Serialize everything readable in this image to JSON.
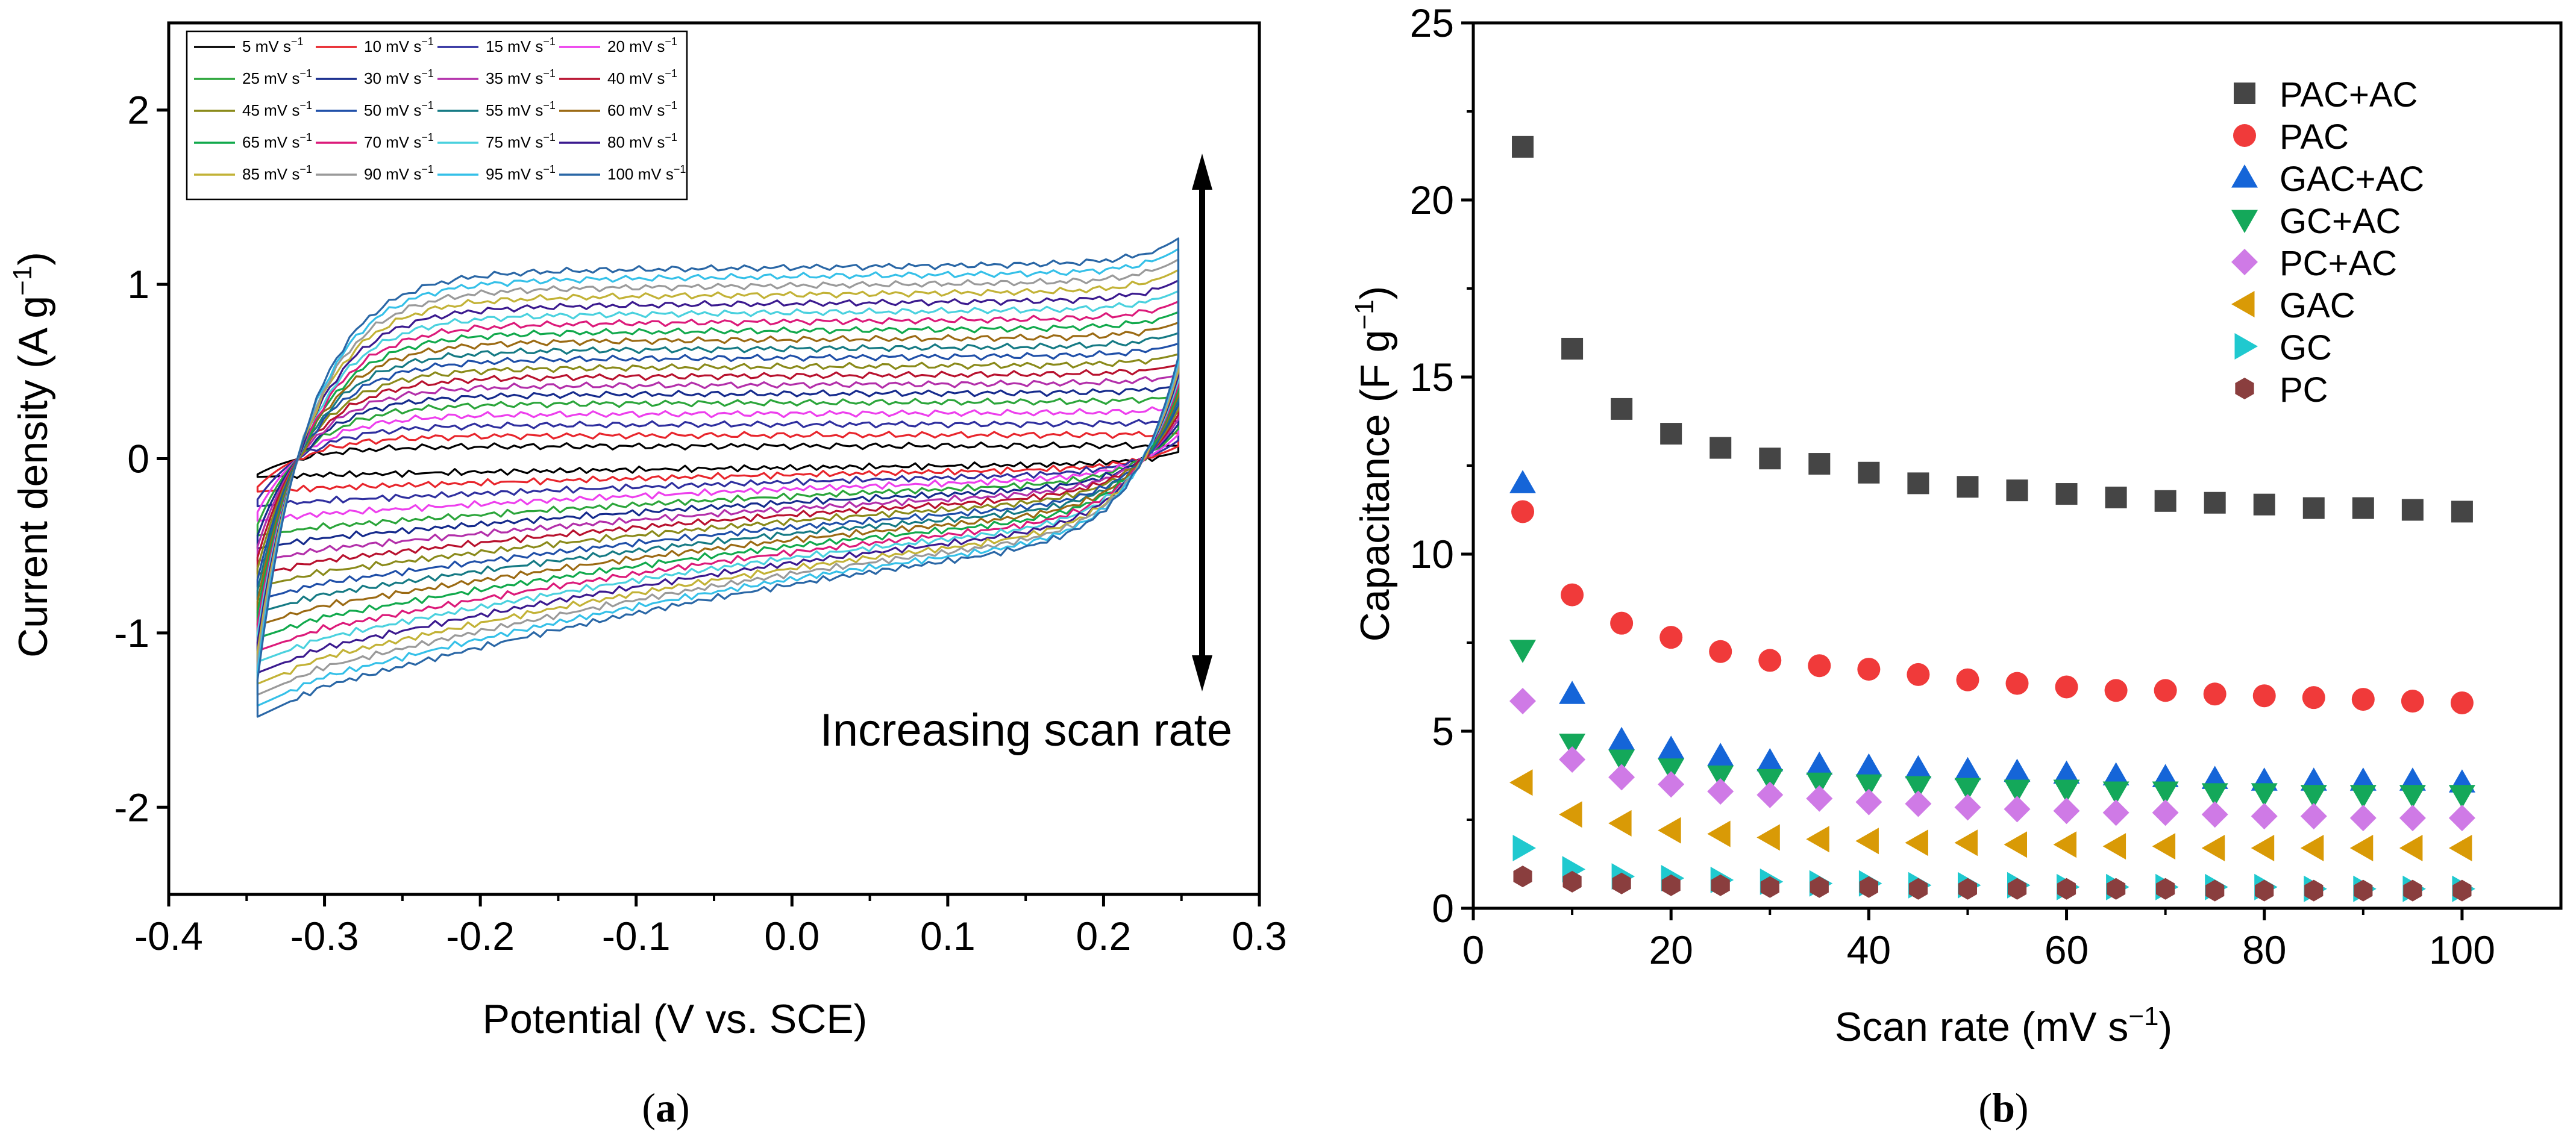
{
  "chart_data": [
    {
      "panel": "a",
      "type": "line",
      "title": "",
      "caption_open": "(",
      "caption_letter": "a",
      "caption_close": ")",
      "xlabel": "Potential (V vs. SCE)",
      "ylabel_main": "Current density (A g",
      "ylabel_sup": "−1",
      "ylabel_close": ")",
      "xlim": [
        -0.4,
        0.3
      ],
      "ylim": [
        -2.5,
        2.5
      ],
      "xticks": [
        -0.4,
        -0.3,
        -0.2,
        -0.1,
        0.0,
        0.1,
        0.2,
        0.3
      ],
      "xtick_labels": [
        "-0.4",
        "-0.3",
        "-0.2",
        "-0.1",
        "0.0",
        "0.1",
        "0.2",
        "0.3"
      ],
      "yticks": [
        -2,
        -1,
        0,
        1,
        2
      ],
      "ytick_labels": [
        "-2",
        "-1",
        "0",
        "1",
        "2"
      ],
      "annotation": "Increasing scan rate",
      "legend_position": "top-left",
      "legend_unit": " mV s",
      "legend_unit_sup": "−1",
      "series": [
        {
          "name": "5",
          "color": "#000000",
          "upper": 0.07,
          "lower": -0.1
        },
        {
          "name": "10",
          "color": "#e8252c",
          "upper": 0.13,
          "lower": -0.18
        },
        {
          "name": "15",
          "color": "#2f2f9f",
          "upper": 0.19,
          "lower": -0.26
        },
        {
          "name": "20",
          "color": "#ed3fed",
          "upper": 0.25,
          "lower": -0.34
        },
        {
          "name": "25",
          "color": "#2ba53a",
          "upper": 0.31,
          "lower": -0.42
        },
        {
          "name": "30",
          "color": "#152a8c",
          "upper": 0.36,
          "lower": -0.49
        },
        {
          "name": "35",
          "color": "#b32faa",
          "upper": 0.41,
          "lower": -0.56
        },
        {
          "name": "40",
          "color": "#b8112e",
          "upper": 0.46,
          "lower": -0.63
        },
        {
          "name": "45",
          "color": "#8a8a1a",
          "upper": 0.51,
          "lower": -0.7
        },
        {
          "name": "50",
          "color": "#1f4fa8",
          "upper": 0.56,
          "lower": -0.77
        },
        {
          "name": "55",
          "color": "#157a84",
          "upper": 0.61,
          "lower": -0.84
        },
        {
          "name": "60",
          "color": "#9b6a13",
          "upper": 0.66,
          "lower": -0.91
        },
        {
          "name": "65",
          "color": "#11a94c",
          "upper": 0.71,
          "lower": -0.98
        },
        {
          "name": "70",
          "color": "#dc1a7a",
          "upper": 0.76,
          "lower": -1.05
        },
        {
          "name": "75",
          "color": "#4ad1de",
          "upper": 0.81,
          "lower": -1.11
        },
        {
          "name": "80",
          "color": "#3b1a8f",
          "upper": 0.86,
          "lower": -1.17
        },
        {
          "name": "85",
          "color": "#c2b236",
          "upper": 0.91,
          "lower": -1.23
        },
        {
          "name": "90",
          "color": "#9a9a9a",
          "upper": 0.96,
          "lower": -1.29
        },
        {
          "name": "95",
          "color": "#35c0e8",
          "upper": 1.01,
          "lower": -1.35
        },
        {
          "name": "100",
          "color": "#2a67a6",
          "upper": 1.06,
          "lower": -1.41
        }
      ]
    },
    {
      "panel": "b",
      "type": "scatter",
      "title": "",
      "caption_open": "(",
      "caption_letter": "b",
      "caption_close": ")",
      "xlabel_main": "Scan rate (mV s",
      "xlabel_sup": "−1",
      "xlabel_close": ")",
      "ylabel_main": "Capacitance (F g",
      "ylabel_sup": "−1",
      "ylabel_close": ")",
      "xlim": [
        0,
        110
      ],
      "ylim": [
        0,
        25
      ],
      "xticks": [
        0,
        20,
        40,
        60,
        80,
        100
      ],
      "xtick_labels": [
        "0",
        "20",
        "40",
        "60",
        "80",
        "100"
      ],
      "yticks": [
        0,
        5,
        10,
        15,
        20,
        25
      ],
      "ytick_labels": [
        "0",
        "5",
        "10",
        "15",
        "20",
        "25"
      ],
      "legend_position": "top-right",
      "x": [
        5,
        10,
        15,
        20,
        25,
        30,
        35,
        40,
        45,
        50,
        55,
        60,
        65,
        70,
        75,
        80,
        85,
        90,
        95,
        100
      ],
      "series": [
        {
          "name": "PAC+AC",
          "marker": "square",
          "color": "#454545",
          "values": [
            21.5,
            15.8,
            14.1,
            13.4,
            13.0,
            12.7,
            12.55,
            12.3,
            12.0,
            11.9,
            11.8,
            11.7,
            11.6,
            11.5,
            11.45,
            11.4,
            11.3,
            11.3,
            11.25,
            11.2
          ]
        },
        {
          "name": "PAC",
          "marker": "circle",
          "color": "#f03a3a",
          "values": [
            11.2,
            8.85,
            8.05,
            7.65,
            7.25,
            7.0,
            6.85,
            6.75,
            6.6,
            6.45,
            6.35,
            6.25,
            6.15,
            6.15,
            6.05,
            6.0,
            5.95,
            5.9,
            5.85,
            5.8
          ]
        },
        {
          "name": "GAC+AC",
          "marker": "triangle-up",
          "color": "#1565d8",
          "values": [
            12.0,
            6.05,
            4.75,
            4.5,
            4.3,
            4.15,
            4.05,
            4.0,
            3.95,
            3.9,
            3.85,
            3.8,
            3.75,
            3.7,
            3.65,
            3.6,
            3.6,
            3.6,
            3.6,
            3.55
          ]
        },
        {
          "name": "GC+AC",
          "marker": "triangle-down",
          "color": "#14a85a",
          "values": [
            7.3,
            4.65,
            4.2,
            3.95,
            3.75,
            3.65,
            3.55,
            3.5,
            3.45,
            3.4,
            3.35,
            3.35,
            3.3,
            3.3,
            3.25,
            3.25,
            3.2,
            3.2,
            3.2,
            3.2
          ]
        },
        {
          "name": "PC+AC",
          "marker": "diamond",
          "color": "#cf7ae6",
          "values": [
            5.85,
            4.2,
            3.7,
            3.5,
            3.3,
            3.2,
            3.1,
            3.0,
            2.95,
            2.85,
            2.8,
            2.75,
            2.7,
            2.7,
            2.65,
            2.6,
            2.6,
            2.55,
            2.55,
            2.55
          ]
        },
        {
          "name": "GAC",
          "marker": "triangle-left",
          "color": "#d99a06",
          "values": [
            3.55,
            2.65,
            2.4,
            2.2,
            2.1,
            2.0,
            1.95,
            1.9,
            1.85,
            1.85,
            1.8,
            1.8,
            1.75,
            1.75,
            1.7,
            1.7,
            1.7,
            1.7,
            1.7,
            1.7
          ]
        },
        {
          "name": "GC",
          "marker": "triangle-right",
          "color": "#1fc9cf",
          "values": [
            1.7,
            1.1,
            0.9,
            0.85,
            0.8,
            0.75,
            0.7,
            0.7,
            0.65,
            0.65,
            0.65,
            0.6,
            0.6,
            0.6,
            0.6,
            0.6,
            0.55,
            0.55,
            0.55,
            0.55
          ]
        },
        {
          "name": "PC",
          "marker": "hexagon",
          "color": "#8a3e3e",
          "values": [
            0.9,
            0.75,
            0.7,
            0.65,
            0.65,
            0.6,
            0.6,
            0.6,
            0.55,
            0.55,
            0.55,
            0.55,
            0.55,
            0.55,
            0.5,
            0.5,
            0.5,
            0.5,
            0.5,
            0.5
          ]
        }
      ]
    }
  ]
}
